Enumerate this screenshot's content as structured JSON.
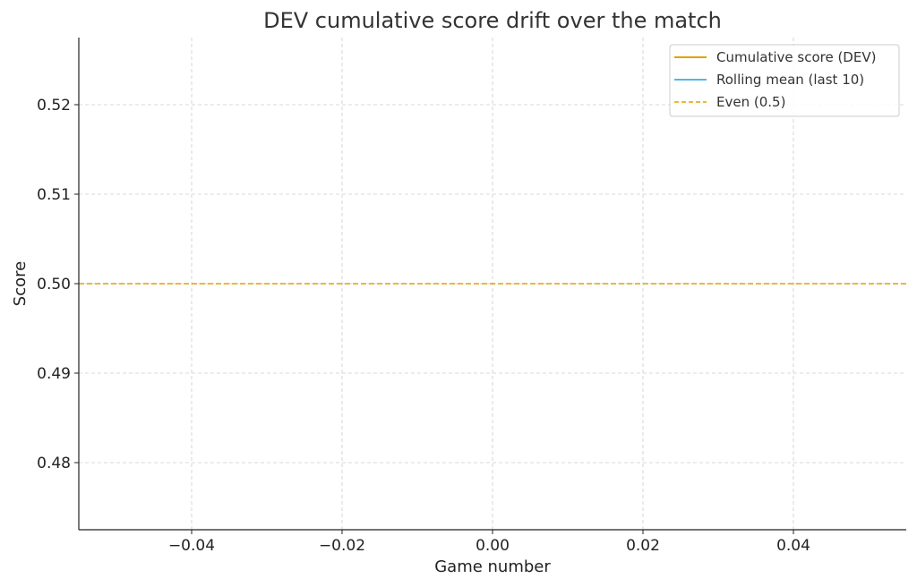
{
  "chart_data": {
    "type": "line",
    "title": "DEV cumulative score drift over the match",
    "xlabel": "Game number",
    "ylabel": "Score",
    "xlim": [
      -0.055,
      0.055
    ],
    "ylim": [
      0.4725,
      0.5275
    ],
    "xticks": [
      -0.04,
      -0.02,
      0.0,
      0.02,
      0.04
    ],
    "xtick_labels": [
      "−0.04",
      "−0.02",
      "0.00",
      "0.02",
      "0.04"
    ],
    "yticks": [
      0.48,
      0.49,
      0.5,
      0.51,
      0.52
    ],
    "ytick_labels": [
      "0.48",
      "0.49",
      "0.50",
      "0.51",
      "0.52"
    ],
    "grid": true,
    "legend_placement": "top-right",
    "series": [
      {
        "name": "Cumulative score (DEV)",
        "color": "#E69F00",
        "style": "solid",
        "x": [],
        "y": []
      },
      {
        "name": "Rolling mean (last 10)",
        "color": "#56B4E9",
        "style": "solid",
        "x": [],
        "y": []
      }
    ],
    "reference_lines": [
      {
        "name": "Even (0.5)",
        "y": 0.5,
        "color": "#E69F00",
        "style": "dashed"
      }
    ]
  }
}
